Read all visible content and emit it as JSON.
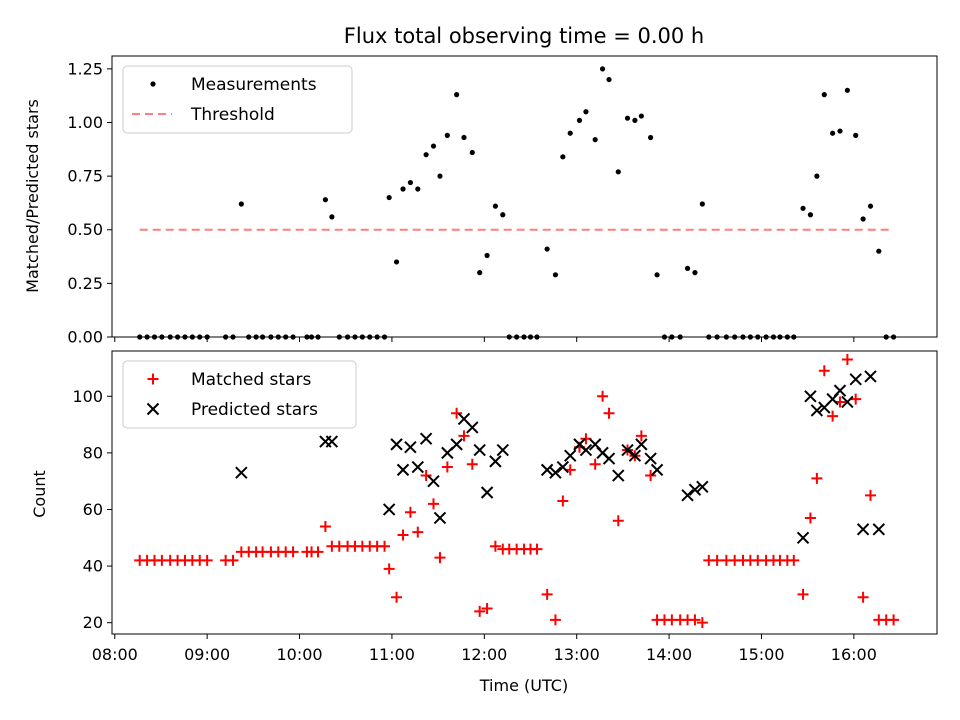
{
  "chart_data": [
    {
      "type": "scatter",
      "title": "Flux total observing time = 0.00 h",
      "xlabel": "",
      "ylabel": "Matched/Predicted stars",
      "xlim": [
        7.97,
        16.9
      ],
      "ylim": [
        0,
        1.31
      ],
      "y_ticks": [
        "0.00",
        "0.25",
        "0.50",
        "0.75",
        "1.00",
        "1.25"
      ],
      "x_ticks_visible": false,
      "legend_position": "top-left",
      "series": [
        {
          "name": "Measurements",
          "color": "#000000",
          "marker": "dot",
          "x": [
            8.27,
            8.35,
            8.43,
            8.51,
            8.6,
            8.68,
            8.76,
            8.84,
            8.92,
            9.0,
            9.2,
            9.28,
            9.37,
            9.45,
            9.53,
            9.6,
            9.69,
            9.77,
            9.85,
            9.93,
            10.08,
            10.13,
            10.2,
            10.28,
            10.35,
            10.43,
            10.52,
            10.6,
            10.68,
            10.76,
            10.84,
            10.92,
            10.97,
            11.05,
            11.12,
            11.2,
            11.28,
            11.37,
            11.45,
            11.52,
            11.6,
            11.7,
            11.78,
            11.87,
            11.95,
            12.03,
            12.12,
            12.2,
            12.27,
            12.35,
            12.43,
            12.5,
            12.57,
            12.68,
            12.77,
            12.85,
            12.93,
            13.03,
            13.1,
            13.2,
            13.28,
            13.35,
            13.45,
            13.55,
            13.63,
            13.7,
            13.8,
            13.87,
            13.95,
            14.03,
            14.12,
            14.2,
            14.28,
            14.36,
            14.43,
            14.52,
            14.62,
            14.71,
            14.8,
            14.88,
            14.96,
            15.05,
            15.13,
            15.2,
            15.28,
            15.35,
            15.45,
            15.53,
            15.6,
            15.68,
            15.77,
            15.85,
            15.93,
            16.02,
            16.1,
            16.18,
            16.27,
            16.35,
            16.43
          ],
          "y": [
            0,
            0,
            0,
            0,
            0,
            0,
            0,
            0,
            0,
            0,
            0,
            0,
            0.62,
            0,
            0,
            0,
            0,
            0,
            0,
            0,
            0,
            0,
            0,
            0.64,
            0.56,
            0,
            0,
            0,
            0,
            0,
            0,
            0,
            0.65,
            0.35,
            0.69,
            0.72,
            0.69,
            0.85,
            0.89,
            0.75,
            0.94,
            1.13,
            0.93,
            0.86,
            0.3,
            0.38,
            0.61,
            0.57,
            0,
            0,
            0,
            0,
            0,
            0.41,
            0.29,
            0.84,
            0.95,
            1.01,
            1.05,
            0.92,
            1.25,
            1.2,
            0.77,
            1.02,
            1.01,
            1.03,
            0.93,
            0.29,
            0,
            0,
            0,
            0.32,
            0.3,
            0.62,
            0,
            0,
            0,
            0,
            0,
            0,
            0,
            0,
            0,
            0,
            0,
            0,
            0.6,
            0.57,
            0.75,
            1.13,
            0.95,
            0.96,
            1.15,
            0.94,
            0.55,
            0.61,
            0.4,
            0,
            0
          ]
        },
        {
          "name": "Threshold",
          "color": "#ff7f7f",
          "marker": "dashed-line",
          "x": [
            8.27,
            16.43
          ],
          "y": [
            0.5,
            0.5
          ]
        }
      ]
    },
    {
      "type": "scatter",
      "title": "",
      "xlabel": "Time (UTC)",
      "ylabel": "Count",
      "xlim": [
        7.97,
        16.9
      ],
      "ylim": [
        16,
        116
      ],
      "x_ticks": [
        "08:00",
        "09:00",
        "10:00",
        "11:00",
        "12:00",
        "13:00",
        "14:00",
        "15:00",
        "16:00"
      ],
      "y_ticks": [
        "20",
        "40",
        "60",
        "80",
        "100"
      ],
      "legend_position": "top-left",
      "series": [
        {
          "name": "Matched stars",
          "color": "#ff0000",
          "marker": "plus",
          "x": [
            8.27,
            8.35,
            8.43,
            8.51,
            8.6,
            8.68,
            8.76,
            8.84,
            8.92,
            9.0,
            9.2,
            9.28,
            9.37,
            9.45,
            9.53,
            9.6,
            9.69,
            9.77,
            9.85,
            9.93,
            10.08,
            10.13,
            10.2,
            10.28,
            10.35,
            10.43,
            10.52,
            10.6,
            10.68,
            10.76,
            10.84,
            10.92,
            10.97,
            11.05,
            11.12,
            11.2,
            11.28,
            11.37,
            11.45,
            11.52,
            11.6,
            11.7,
            11.78,
            11.87,
            11.95,
            12.03,
            12.12,
            12.2,
            12.27,
            12.35,
            12.43,
            12.5,
            12.57,
            12.68,
            12.77,
            12.85,
            12.93,
            13.03,
            13.1,
            13.2,
            13.28,
            13.35,
            13.45,
            13.55,
            13.63,
            13.7,
            13.8,
            13.87,
            13.95,
            14.03,
            14.12,
            14.2,
            14.28,
            14.36,
            14.43,
            14.52,
            14.62,
            14.71,
            14.8,
            14.88,
            14.96,
            15.05,
            15.13,
            15.2,
            15.28,
            15.35,
            15.45,
            15.53,
            15.6,
            15.68,
            15.77,
            15.85,
            15.93,
            16.02,
            16.1,
            16.18,
            16.27,
            16.35,
            16.43
          ],
          "y": [
            42,
            42,
            42,
            42,
            42,
            42,
            42,
            42,
            42,
            42,
            42,
            42,
            45,
            45,
            45,
            45,
            45,
            45,
            45,
            45,
            45,
            45,
            45,
            54,
            47,
            47,
            47,
            47,
            47,
            47,
            47,
            47,
            39,
            29,
            51,
            59,
            52,
            72,
            62,
            43,
            75,
            94,
            86,
            76,
            24,
            25,
            47,
            46,
            46,
            46,
            46,
            46,
            46,
            30,
            21,
            63,
            74,
            82,
            85,
            76,
            100,
            94,
            56,
            81,
            79,
            86,
            72,
            21,
            21,
            21,
            21,
            21,
            21,
            20,
            42,
            42,
            42,
            42,
            42,
            42,
            42,
            42,
            42,
            42,
            42,
            42,
            30,
            57,
            71,
            109,
            93,
            98,
            113,
            99,
            29,
            65,
            21,
            21,
            21
          ]
        },
        {
          "name": "Predicted stars",
          "color": "#000000",
          "marker": "x",
          "x": [
            9.37,
            10.28,
            10.35,
            10.97,
            11.05,
            11.12,
            11.2,
            11.28,
            11.37,
            11.45,
            11.52,
            11.6,
            11.7,
            11.78,
            11.87,
            11.95,
            12.03,
            12.12,
            12.2,
            12.68,
            12.77,
            12.85,
            12.93,
            13.03,
            13.1,
            13.2,
            13.28,
            13.35,
            13.45,
            13.55,
            13.63,
            13.7,
            13.8,
            13.87,
            14.2,
            14.28,
            14.36,
            15.45,
            15.53,
            15.6,
            15.68,
            15.77,
            15.85,
            15.93,
            16.02,
            16.1,
            16.18,
            16.27
          ],
          "y": [
            73,
            84,
            84,
            60,
            83,
            74,
            82,
            75,
            85,
            70,
            57,
            80,
            83,
            92,
            89,
            81,
            66,
            77,
            81,
            74,
            73,
            75,
            79,
            83,
            81,
            83,
            80,
            78,
            72,
            81,
            79,
            83,
            78,
            74,
            65,
            67,
            68,
            50,
            100,
            95,
            96,
            99,
            102,
            98,
            106,
            53,
            107,
            53
          ]
        }
      ]
    }
  ]
}
